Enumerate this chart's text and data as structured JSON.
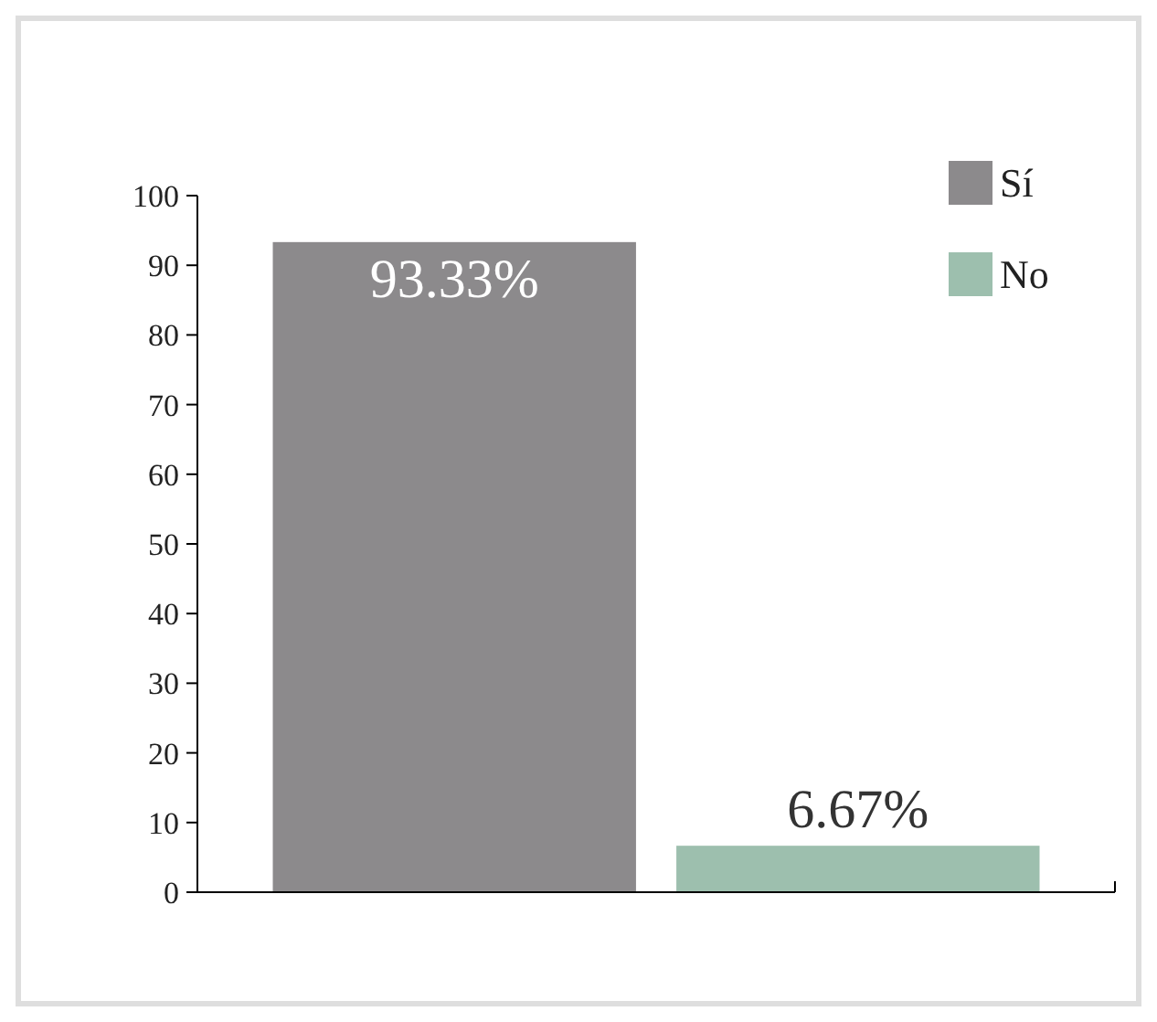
{
  "chart_data": {
    "type": "bar",
    "categories": [
      null,
      null
    ],
    "series": [
      {
        "name": "Sí",
        "color": "#8c8a8c",
        "values": [
          93.33,
          null
        ],
        "value_labels": [
          "93.33%",
          null
        ]
      },
      {
        "name": "No",
        "color": "#9dbfae",
        "values": [
          null,
          6.67
        ],
        "value_labels": [
          null,
          "6.67%"
        ]
      }
    ],
    "ylim": [
      0,
      100
    ],
    "yticks": [
      0,
      10,
      20,
      30,
      40,
      50,
      60,
      70,
      80,
      90,
      100
    ],
    "grid": false,
    "legend": "top right"
  }
}
